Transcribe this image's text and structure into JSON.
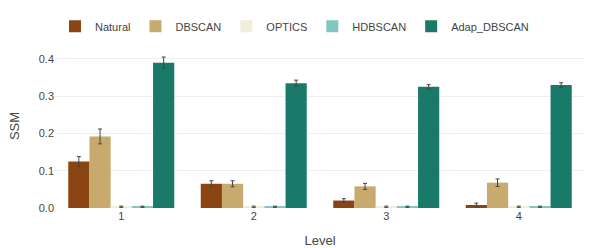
{
  "chart_data": {
    "type": "bar",
    "xlabel": "Level",
    "ylabel": "SSM",
    "categories": [
      "1",
      "2",
      "3",
      "4"
    ],
    "series": [
      {
        "name": "Natural",
        "color": "#8B4513",
        "values": [
          0.125,
          0.065,
          0.02,
          0.008
        ],
        "errors": [
          0.013,
          0.008,
          0.005,
          0.005
        ]
      },
      {
        "name": "DBSCAN",
        "color": "#C8A96E",
        "values": [
          0.192,
          0.065,
          0.058,
          0.068
        ],
        "errors": [
          0.02,
          0.008,
          0.008,
          0.01
        ]
      },
      {
        "name": "OPTICS",
        "color": "#F0EED8",
        "values": [
          0.003,
          0.003,
          0.003,
          0.003
        ],
        "errors": [
          0.002,
          0.002,
          0.002,
          0.002
        ]
      },
      {
        "name": "HDBSCAN",
        "color": "#7EC8C0",
        "values": [
          0.003,
          0.003,
          0.003,
          0.003
        ],
        "errors": [
          0.002,
          0.002,
          0.002,
          0.002
        ]
      },
      {
        "name": "Adap_DBSCAN",
        "color": "#1A7A6A",
        "values": [
          0.39,
          0.335,
          0.325,
          0.33
        ],
        "errors": [
          0.015,
          0.008,
          0.006,
          0.006
        ]
      }
    ],
    "ylim": [
      0.0,
      0.44
    ],
    "yticks": [
      {
        "value": 0,
        "label": "0.0"
      },
      0.1,
      0.2,
      0.3,
      0.4
    ],
    "grid": true,
    "legend": "upper left"
  }
}
